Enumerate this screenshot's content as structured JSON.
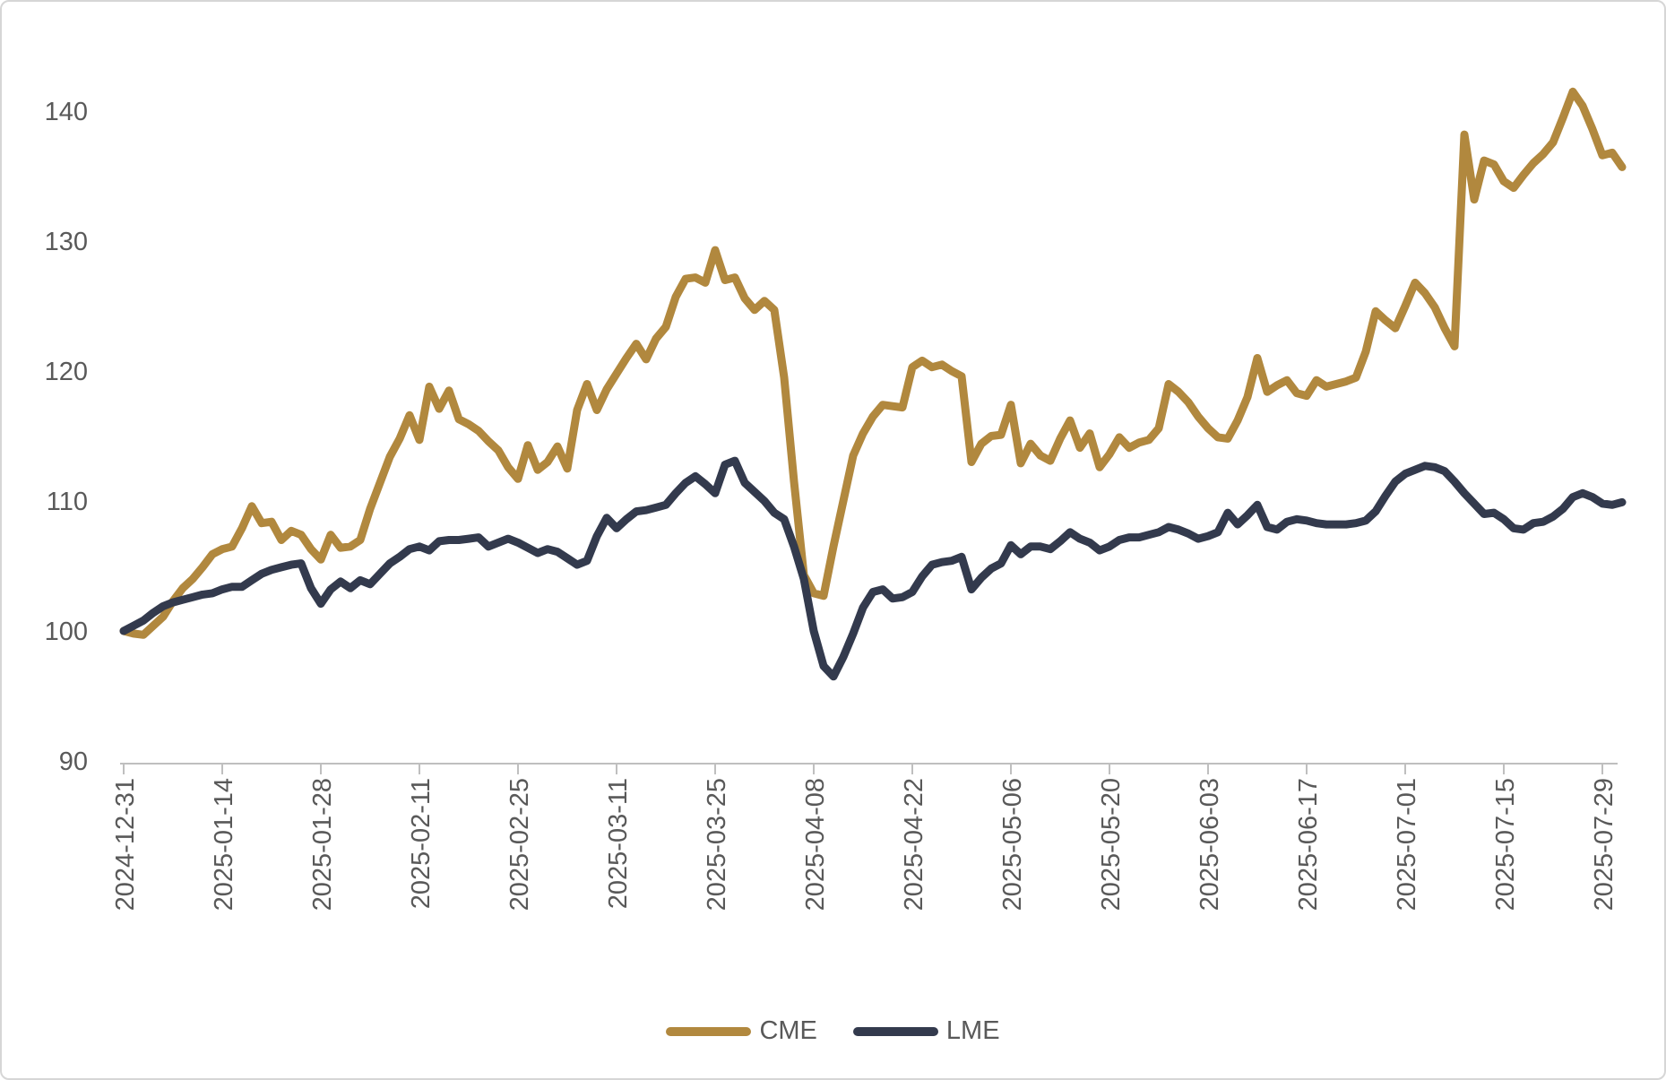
{
  "page": {
    "background_color": "#ffffff",
    "border_color": "#d6d6d6",
    "text_color": "#595959",
    "axis_line_color": "#bfbfbf"
  },
  "legend": {
    "items": [
      {
        "label": "CME",
        "color": "#b1883e"
      },
      {
        "label": "LME",
        "color": "#333a4d"
      }
    ]
  },
  "chart_data": {
    "type": "line",
    "title": "",
    "xlabel": "",
    "ylabel": "",
    "grid": "off",
    "legend_position": "bottom",
    "ylim": [
      90,
      145
    ],
    "y_ticks": [
      90,
      100,
      110,
      120,
      130,
      140
    ],
    "x_tick_labels": [
      "2024-12-31",
      "2025-01-14",
      "2025-01-28",
      "2025-02-11",
      "2025-02-25",
      "2025-03-11",
      "2025-03-25",
      "2025-04-08",
      "2025-04-22",
      "2025-05-06",
      "2025-05-20",
      "2025-06-03",
      "2025-06-17",
      "2025-07-01",
      "2025-07-15",
      "2025-07-29"
    ],
    "x_points_per_tick": 10,
    "x_note": "daily (weekday) index series, 153 points from 2024-12-31 to end of July 2025, indexed 2024-12-31 = 100",
    "series": [
      {
        "name": "CME",
        "color": "#b1883e",
        "values": [
          100.0,
          99.8,
          99.7,
          100.4,
          101.1,
          102.3,
          103.3,
          104.0,
          104.9,
          105.9,
          106.3,
          106.5,
          107.9,
          109.6,
          108.3,
          108.4,
          107.0,
          107.7,
          107.4,
          106.3,
          105.5,
          107.4,
          106.4,
          106.5,
          107.0,
          109.4,
          111.4,
          113.4,
          114.8,
          116.6,
          114.7,
          118.8,
          117.1,
          118.5,
          116.3,
          115.9,
          115.4,
          114.6,
          113.9,
          112.6,
          111.7,
          114.3,
          112.4,
          113.0,
          114.2,
          112.5,
          117.0,
          119.0,
          117.0,
          118.6,
          119.8,
          121.0,
          122.1,
          120.9,
          122.5,
          123.4,
          125.7,
          127.1,
          127.2,
          126.8,
          129.3,
          127.0,
          127.2,
          125.6,
          124.7,
          125.4,
          124.7,
          119.5,
          111.5,
          104.3,
          102.9,
          102.7,
          106.5,
          110.0,
          113.5,
          115.2,
          116.5,
          117.4,
          117.3,
          117.2,
          120.3,
          120.8,
          120.3,
          120.5,
          120.0,
          119.6,
          113.0,
          114.4,
          115.0,
          115.1,
          117.4,
          112.9,
          114.4,
          113.5,
          113.1,
          114.8,
          116.2,
          114.1,
          115.2,
          112.6,
          113.6,
          114.9,
          114.1,
          114.5,
          114.7,
          115.6,
          119.0,
          118.4,
          117.6,
          116.5,
          115.6,
          114.9,
          114.8,
          116.2,
          118.0,
          121.0,
          118.4,
          118.9,
          119.3,
          118.3,
          118.1,
          119.3,
          118.8,
          119.0,
          119.2,
          119.5,
          121.5,
          124.6,
          123.9,
          123.3,
          125.0,
          126.8,
          126.0,
          124.9,
          123.3,
          121.9,
          138.2,
          133.2,
          136.2,
          135.9,
          134.6,
          134.1,
          135.1,
          136.0,
          136.7,
          137.6,
          139.5,
          141.5,
          140.4,
          138.6,
          136.6,
          136.8,
          135.7
        ]
      },
      {
        "name": "LME",
        "color": "#333a4d",
        "values": [
          100.0,
          100.4,
          100.8,
          101.4,
          101.9,
          102.2,
          102.4,
          102.6,
          102.8,
          102.9,
          103.2,
          103.4,
          103.4,
          103.9,
          104.4,
          104.7,
          104.9,
          105.1,
          105.2,
          103.3,
          102.1,
          103.2,
          103.8,
          103.3,
          103.9,
          103.6,
          104.4,
          105.2,
          105.7,
          106.3,
          106.5,
          106.2,
          106.9,
          107.0,
          107.0,
          107.1,
          107.2,
          106.5,
          106.8,
          107.1,
          106.8,
          106.4,
          106.0,
          106.3,
          106.1,
          105.6,
          105.1,
          105.4,
          107.3,
          108.7,
          107.9,
          108.6,
          109.2,
          109.3,
          109.5,
          109.7,
          110.6,
          111.4,
          111.9,
          111.3,
          110.6,
          112.8,
          113.1,
          111.4,
          110.7,
          110.0,
          109.1,
          108.6,
          106.5,
          104.0,
          100.0,
          97.3,
          96.5,
          98.0,
          99.8,
          101.8,
          103.0,
          103.2,
          102.5,
          102.6,
          103.0,
          104.2,
          105.1,
          105.3,
          105.4,
          105.7,
          103.2,
          104.1,
          104.8,
          105.2,
          106.6,
          105.9,
          106.5,
          106.5,
          106.3,
          106.9,
          107.6,
          107.1,
          106.8,
          106.2,
          106.5,
          107.0,
          107.2,
          107.2,
          107.4,
          107.6,
          108.0,
          107.8,
          107.5,
          107.1,
          107.3,
          107.6,
          109.1,
          108.2,
          108.9,
          109.7,
          108.0,
          107.8,
          108.4,
          108.6,
          108.5,
          108.3,
          108.2,
          108.2,
          108.2,
          108.3,
          108.5,
          109.2,
          110.4,
          111.5,
          112.1,
          112.4,
          112.7,
          112.6,
          112.3,
          111.5,
          110.6,
          109.8,
          109.0,
          109.1,
          108.6,
          107.9,
          107.8,
          108.3,
          108.4,
          108.8,
          109.4,
          110.3,
          110.6,
          110.3,
          109.8,
          109.7,
          109.9
        ]
      }
    ]
  }
}
